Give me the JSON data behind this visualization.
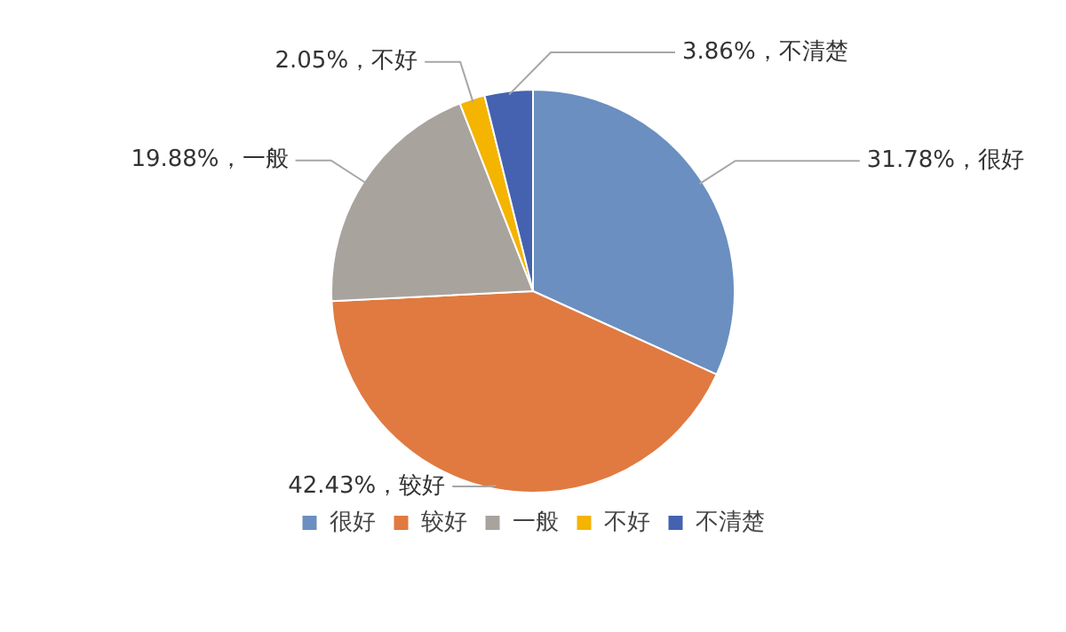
{
  "chart_data": {
    "type": "pie",
    "categories": [
      "很好",
      "较好",
      "一般",
      "不好",
      "不清楚"
    ],
    "values": [
      31.78,
      42.43,
      19.88,
      2.05,
      3.86
    ],
    "colors": [
      "#6a8fc0",
      "#e07a40",
      "#a8a39d",
      "#f4b400",
      "#4462b0"
    ],
    "value_labels": [
      "31.78%，很好",
      "42.43%，较好",
      "19.88%，一般",
      "2.05%，不好",
      "3.86%，不清楚"
    ],
    "legend": "bottom"
  }
}
